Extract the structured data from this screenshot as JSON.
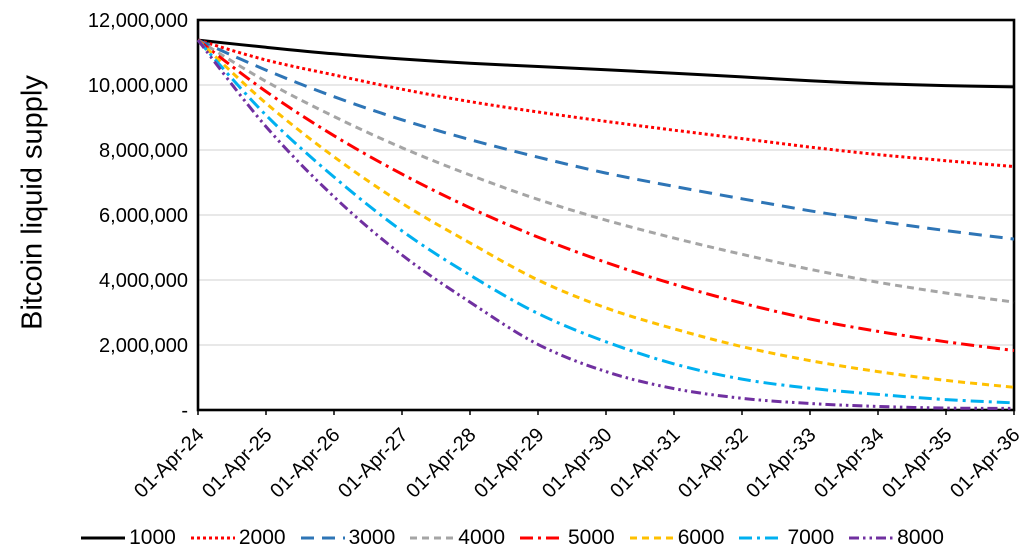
{
  "chart_data": {
    "type": "line",
    "ylabel": "Bitcoin liquid supply",
    "ylim": [
      0,
      12000000
    ],
    "grid": "horizontal-only",
    "legend_position": "bottom",
    "axis_color": "#000000",
    "gridline_color": "#d9d9d9",
    "y_ticks": [
      {
        "label": "12,000,000",
        "value": 12000000
      },
      {
        "label": "10,000,000",
        "value": 10000000
      },
      {
        "label": "8,000,000",
        "value": 8000000
      },
      {
        "label": "6,000,000",
        "value": 6000000
      },
      {
        "label": "4,000,000",
        "value": 4000000
      },
      {
        "label": "2,000,000",
        "value": 2000000
      },
      {
        "label": "-",
        "value": 0
      }
    ],
    "x_tick_labels": [
      "01-Apr-24",
      "01-Apr-25",
      "01-Apr-26",
      "01-Apr-27",
      "01-Apr-28",
      "01-Apr-29",
      "01-Apr-30",
      "01-Apr-31",
      "01-Apr-32",
      "01-Apr-33",
      "01-Apr-34",
      "01-Apr-35",
      "01-Apr-36"
    ],
    "series": [
      {
        "name": "1000",
        "color": "#000000",
        "dash": "solid",
        "values": [
          11380000,
          11160000,
          10960000,
          10800000,
          10670000,
          10570000,
          10470000,
          10360000,
          10250000,
          10130000,
          10040000,
          9980000,
          9940000
        ]
      },
      {
        "name": "2000",
        "color": "#ff0000",
        "dash": "dot",
        "values": [
          11380000,
          10770000,
          10310000,
          9870000,
          9490000,
          9170000,
          8880000,
          8610000,
          8350000,
          8090000,
          7860000,
          7670000,
          7490000
        ]
      },
      {
        "name": "3000",
        "color": "#2e75b6",
        "dash": "longdash",
        "values": [
          11380000,
          10460000,
          9640000,
          8930000,
          8320000,
          7780000,
          7290000,
          6880000,
          6500000,
          6130000,
          5810000,
          5520000,
          5260000
        ]
      },
      {
        "name": "4000",
        "color": "#a5a5a5",
        "dash": "dash",
        "values": [
          11380000,
          10110000,
          9030000,
          8070000,
          7230000,
          6480000,
          5840000,
          5290000,
          4790000,
          4330000,
          3930000,
          3600000,
          3320000
        ]
      },
      {
        "name": "5000",
        "color": "#ff0000",
        "dash": "dashdot",
        "values": [
          11380000,
          9800000,
          8440000,
          7260000,
          6220000,
          5320000,
          4540000,
          3870000,
          3290000,
          2800000,
          2420000,
          2100000,
          1830000
        ]
      },
      {
        "name": "6000",
        "color": "#ffc000",
        "dash": "dash",
        "values": [
          11380000,
          9440000,
          7790000,
          6360000,
          5140000,
          4000000,
          3140000,
          2500000,
          1950000,
          1520000,
          1180000,
          910000,
          700000
        ]
      },
      {
        "name": "7000",
        "color": "#00b0f0",
        "dash": "dashdot",
        "values": [
          11380000,
          9070000,
          7170000,
          5510000,
          4150000,
          2970000,
          2100000,
          1420000,
          950000,
          670000,
          480000,
          320000,
          220000
        ]
      },
      {
        "name": "8000",
        "color": "#7030a0",
        "dash": "dashdotdot",
        "values": [
          11380000,
          8720000,
          6560000,
          4770000,
          3320000,
          2020000,
          1180000,
          660000,
          360000,
          200000,
          110000,
          60000,
          30000
        ]
      }
    ]
  }
}
